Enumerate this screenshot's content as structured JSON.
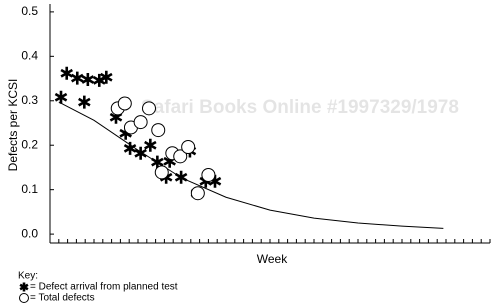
{
  "chart_data": {
    "type": "scatter",
    "watermark": "Safari Books Online #1997329/1978",
    "x_label": "Week",
    "y_label": "Defects per KCSI",
    "key_title": "Key:",
    "xlim": [
      0,
      50
    ],
    "xticks": [
      0,
      1,
      2,
      3,
      4,
      5,
      6,
      7,
      8,
      9,
      10,
      11,
      12,
      13,
      14,
      15,
      16,
      17,
      18,
      19,
      20,
      21,
      22,
      23,
      24,
      25,
      26,
      27,
      28,
      29,
      30,
      31,
      32,
      33,
      34,
      35,
      36,
      37,
      38,
      39,
      40,
      41,
      42,
      43,
      44,
      45,
      46,
      47,
      48,
      49,
      50
    ],
    "ylim": [
      -0.02,
      0.52
    ],
    "yticks": [
      {
        "value": 0,
        "label": "0.0"
      },
      0.1,
      0.2,
      0.3,
      0.4,
      0.5
    ],
    "series": [
      {
        "name": "= Defect arrival from planned test",
        "marker": "asterisk",
        "color": "#000000",
        "x": [
          1.25,
          1.9,
          3.1,
          4.3,
          5.6,
          6.4,
          3.9,
          7.5,
          8.6,
          9.1,
          10.3,
          11.4,
          12.2,
          13.6,
          13.2,
          14.9,
          15.9,
          16.7,
          17.7,
          18.75
        ],
        "values": [
          0.308,
          0.362,
          0.351,
          0.348,
          0.346,
          0.353,
          0.297,
          0.263,
          0.227,
          0.193,
          0.182,
          0.2,
          0.162,
          0.164,
          0.128,
          0.128,
          0.187,
          0.092,
          0.119,
          0.119
        ]
      },
      {
        "name": "= Total defects",
        "marker": "circle",
        "color": "#000000",
        "x": [
          7.7,
          8.5,
          9.2,
          10.3,
          11.25,
          12.3,
          12.7,
          13.9,
          14.8,
          15.7,
          16.8,
          18
        ],
        "values": [
          0.283,
          0.294,
          0.24,
          0.252,
          0.283,
          0.234,
          0.139,
          0.182,
          0.175,
          0.196,
          0.092,
          0.133
        ]
      },
      {
        "marker": "line",
        "color": "#000000",
        "x": [
          1,
          5,
          10,
          15,
          20,
          25,
          30,
          35,
          40,
          44.7
        ],
        "values": [
          0.297,
          0.256,
          0.189,
          0.126,
          0.083,
          0.054,
          0.036,
          0.025,
          0.018,
          0.013
        ]
      }
    ]
  }
}
